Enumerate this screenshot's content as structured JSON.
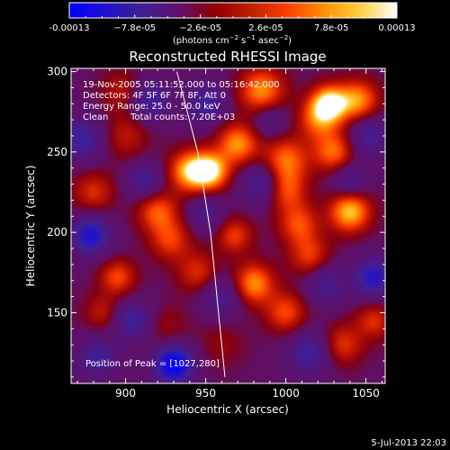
{
  "chart_data": {
    "type": "heatmap",
    "title": "Reconstructed RHESSI Image",
    "xlabel": "Heliocentric X (arcsec)",
    "ylabel": "Heliocentric Y (arcsec)",
    "xlim": [
      866,
      1062
    ],
    "ylim": [
      106,
      302
    ],
    "x_ticks": [
      900,
      950,
      1000,
      1050
    ],
    "x_tick_labels": [
      "900",
      "950",
      "1000",
      "1050"
    ],
    "y_ticks": [
      150,
      200,
      250,
      300
    ],
    "y_tick_labels": [
      "150",
      "200",
      "250",
      "300"
    ],
    "colorbar": {
      "min": -0.00013,
      "max": 0.00013,
      "tick_labels": [
        "-0.00013",
        "−7.8e-05",
        "−2.6e-05",
        "2.6e-05",
        "7.8e-05",
        "0.00013"
      ],
      "unit_label_parts": [
        "(photons cm",
        "−2",
        " s",
        "−1",
        " asec",
        "−2",
        ")"
      ],
      "colormap": [
        "#0000ff",
        "#2010d0",
        "#402090",
        "#601070",
        "#900000",
        "#c02000",
        "#ff4000",
        "#ff9000",
        "#ffd040",
        "#ffffff"
      ]
    },
    "annotations": [
      "19-Nov-2005 05:11:52.000 to 05:16:42.000",
      "Detectors: 4F 5F 6F 7F 8F, Att 0",
      "Energy Range: 25.0 - 50.0 keV",
      "Clean",
      "Total counts: 7.20E+03"
    ],
    "peak_label": "Position of Peak = [1027,280]",
    "peak": [
      1027,
      280
    ],
    "limb_curve": [
      [
        932,
        300
      ],
      [
        945,
        250
      ],
      [
        953,
        200
      ],
      [
        958,
        150
      ],
      [
        962,
        110
      ]
    ],
    "blobs": [
      {
        "x": 940,
        "y": 238,
        "v": 0.85,
        "s": 9
      },
      {
        "x": 953,
        "y": 238,
        "v": 0.95,
        "s": 8
      },
      {
        "x": 970,
        "y": 255,
        "v": 0.75,
        "s": 9
      },
      {
        "x": 985,
        "y": 288,
        "v": 0.75,
        "s": 10
      },
      {
        "x": 1000,
        "y": 245,
        "v": 0.65,
        "s": 10
      },
      {
        "x": 1000,
        "y": 226,
        "v": 0.55,
        "s": 9
      },
      {
        "x": 1020,
        "y": 270,
        "v": 0.55,
        "s": 9
      },
      {
        "x": 1027,
        "y": 280,
        "v": 1.0,
        "s": 8
      },
      {
        "x": 1045,
        "y": 282,
        "v": 0.75,
        "s": 9
      },
      {
        "x": 1030,
        "y": 250,
        "v": 0.65,
        "s": 9
      },
      {
        "x": 1008,
        "y": 205,
        "v": 0.55,
        "s": 9
      },
      {
        "x": 1040,
        "y": 213,
        "v": 0.9,
        "s": 9
      },
      {
        "x": 1015,
        "y": 185,
        "v": 0.5,
        "s": 9
      },
      {
        "x": 980,
        "y": 168,
        "v": 0.75,
        "s": 9
      },
      {
        "x": 968,
        "y": 198,
        "v": 0.5,
        "s": 8
      },
      {
        "x": 1000,
        "y": 150,
        "v": 0.55,
        "s": 9
      },
      {
        "x": 1035,
        "y": 130,
        "v": 0.5,
        "s": 9
      },
      {
        "x": 1055,
        "y": 145,
        "v": 0.45,
        "s": 8
      },
      {
        "x": 920,
        "y": 213,
        "v": 0.6,
        "s": 9
      },
      {
        "x": 928,
        "y": 195,
        "v": 0.5,
        "s": 9
      },
      {
        "x": 945,
        "y": 175,
        "v": 0.45,
        "s": 9
      },
      {
        "x": 895,
        "y": 172,
        "v": 0.55,
        "s": 8
      },
      {
        "x": 880,
        "y": 225,
        "v": 0.45,
        "s": 9
      },
      {
        "x": 900,
        "y": 260,
        "v": 0.35,
        "s": 10
      },
      {
        "x": 898,
        "y": 288,
        "v": 0.35,
        "s": 9
      },
      {
        "x": 885,
        "y": 150,
        "v": 0.35,
        "s": 8
      },
      {
        "x": 925,
        "y": 140,
        "v": 0.25,
        "s": 10
      },
      {
        "x": 960,
        "y": 130,
        "v": 0.2,
        "s": 10
      },
      {
        "x": 878,
        "y": 198,
        "v": -0.75,
        "s": 9
      },
      {
        "x": 873,
        "y": 258,
        "v": -0.55,
        "s": 10
      },
      {
        "x": 915,
        "y": 282,
        "v": -0.55,
        "s": 9
      },
      {
        "x": 950,
        "y": 280,
        "v": -0.5,
        "s": 9
      },
      {
        "x": 985,
        "y": 230,
        "v": -0.55,
        "s": 9
      },
      {
        "x": 912,
        "y": 232,
        "v": -0.5,
        "s": 8
      },
      {
        "x": 1040,
        "y": 232,
        "v": -0.45,
        "s": 8
      },
      {
        "x": 1052,
        "y": 260,
        "v": -0.5,
        "s": 9
      },
      {
        "x": 1055,
        "y": 172,
        "v": -0.7,
        "s": 9
      },
      {
        "x": 1025,
        "y": 168,
        "v": -0.45,
        "s": 9
      },
      {
        "x": 930,
        "y": 118,
        "v": -1.0,
        "s": 9
      },
      {
        "x": 905,
        "y": 145,
        "v": -0.55,
        "s": 9
      },
      {
        "x": 1015,
        "y": 125,
        "v": -0.55,
        "s": 10
      },
      {
        "x": 882,
        "y": 122,
        "v": -0.5,
        "s": 9
      },
      {
        "x": 960,
        "y": 160,
        "v": -0.45,
        "s": 9
      },
      {
        "x": 950,
        "y": 212,
        "v": -0.4,
        "s": 8
      },
      {
        "x": 990,
        "y": 270,
        "v": -0.35,
        "s": 8
      }
    ]
  },
  "timestamp": "5-Jul-2013 22:03"
}
